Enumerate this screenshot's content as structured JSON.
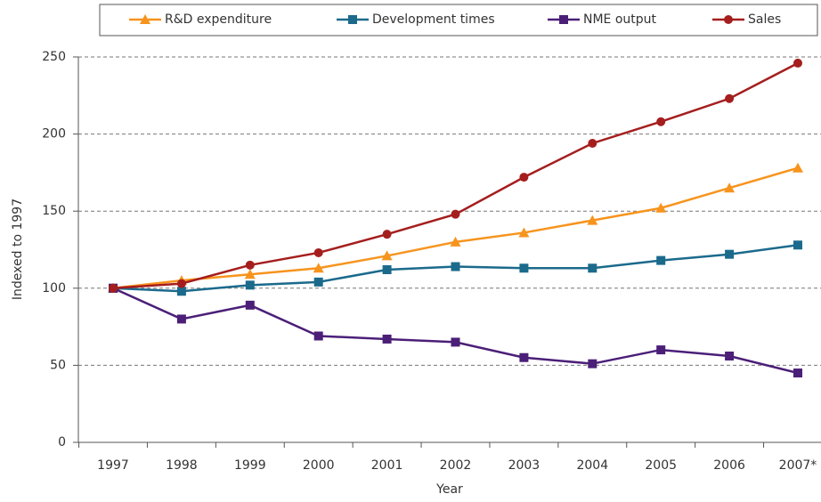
{
  "chart_data": {
    "type": "line",
    "xlabel": "Year",
    "ylabel": "Indexed to 1997",
    "categories": [
      "1997",
      "1998",
      "1999",
      "2000",
      "2001",
      "2002",
      "2003",
      "2004",
      "2005",
      "2006",
      "2007*"
    ],
    "series": [
      {
        "name": "R&D expenditure",
        "color": "#f7941d",
        "marker": "triangle",
        "values": [
          100,
          105,
          109,
          113,
          121,
          130,
          136,
          144,
          152,
          165,
          178
        ]
      },
      {
        "name": "Development times",
        "color": "#1b6a8c",
        "marker": "square",
        "values": [
          100,
          98,
          102,
          104,
          112,
          114,
          113,
          113,
          118,
          122,
          128
        ]
      },
      {
        "name": "NME output",
        "color": "#4b1f78",
        "marker": "square",
        "values": [
          100,
          80,
          89,
          69,
          67,
          65,
          55,
          51,
          60,
          56,
          45
        ]
      },
      {
        "name": "Sales",
        "color": "#a51e1e",
        "marker": "circle",
        "values": [
          100,
          103,
          115,
          123,
          135,
          148,
          172,
          194,
          208,
          223,
          246
        ]
      }
    ],
    "ylim": [
      0,
      250
    ],
    "yticks": [
      0,
      50,
      100,
      150,
      200,
      250
    ],
    "grid": true,
    "legend": "top"
  }
}
